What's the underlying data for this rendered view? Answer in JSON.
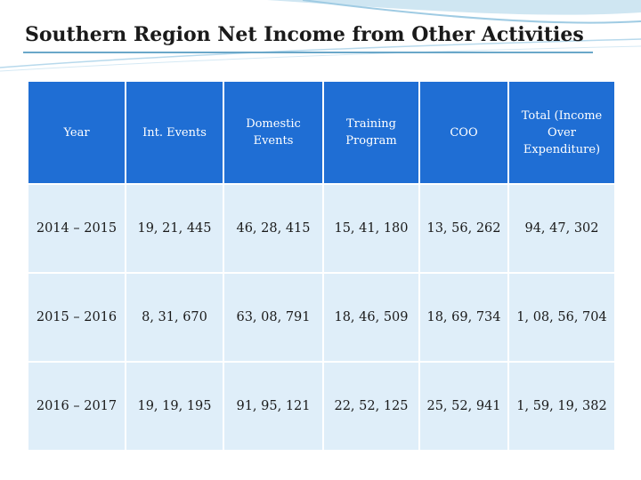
{
  "title": "Southern Region Net Income from Other Activities",
  "table": {
    "headers": [
      "Year",
      "Int. Events",
      "Domestic Events",
      "Training Program",
      "COO",
      "Total (Income Over Expenditure)"
    ],
    "rows": [
      [
        "2014 – 2015",
        "19, 21, 445",
        "46, 28, 415",
        "15, 41, 180",
        "13, 56, 262",
        "94, 47, 302"
      ],
      [
        "2015 – 2016",
        "8, 31, 670",
        "63, 08, 791",
        "18, 46, 509",
        "18, 69, 734",
        "1, 08, 56, 704"
      ],
      [
        "2016 – 2017",
        "19, 19, 195",
        "91, 95, 121",
        "22, 52, 125",
        "25, 52, 941",
        "1, 59, 19, 382"
      ]
    ]
  },
  "colors": {
    "header_background": "#1f6ed4",
    "row_background": "#dfeef9",
    "accent": "#6aa7c9"
  }
}
